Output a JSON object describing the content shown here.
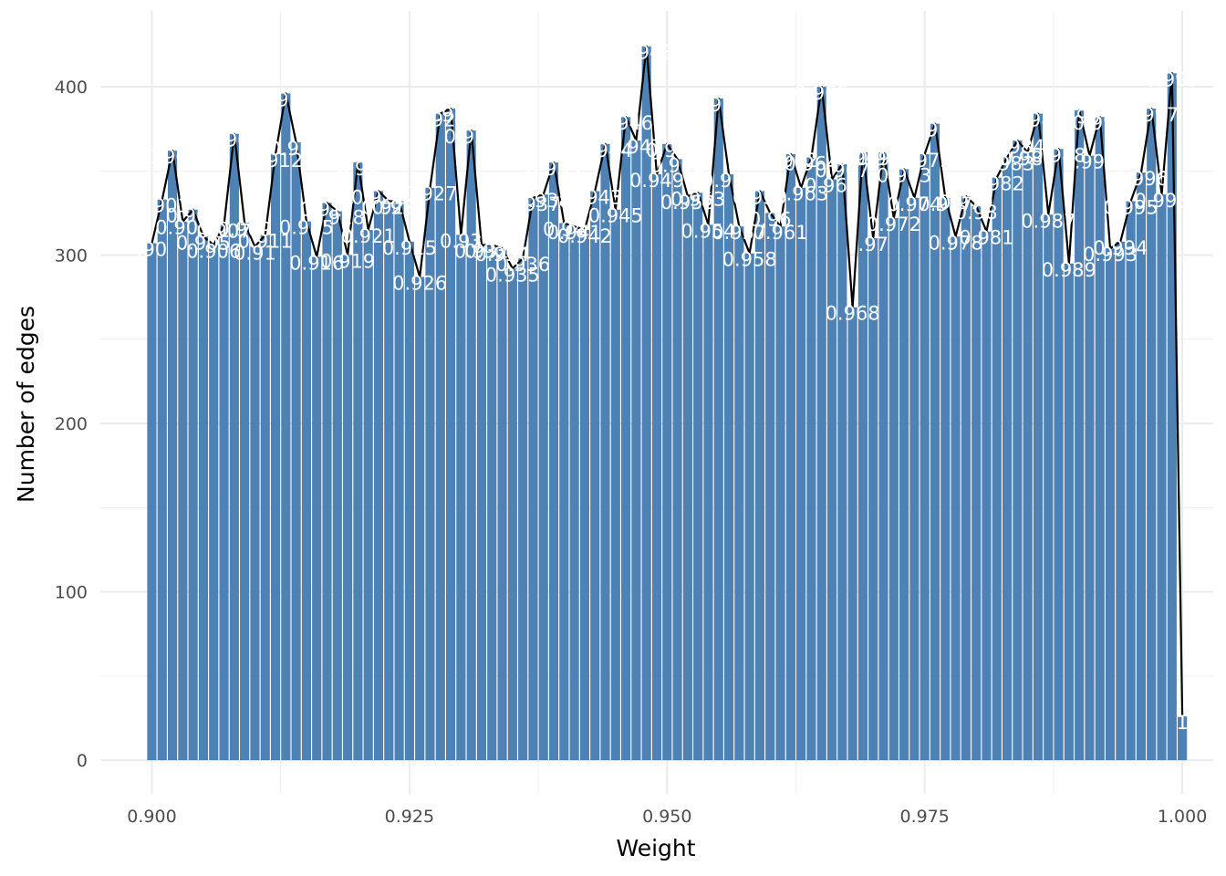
{
  "chart_data": {
    "type": "bar",
    "xlabel": "Weight",
    "ylabel": "Number of edges",
    "xlim": [
      0.895,
      1.003
    ],
    "ylim": [
      -20,
      445
    ],
    "x_ticks": [
      0.9,
      0.925,
      0.95,
      0.975,
      1.0
    ],
    "x_tick_labels": [
      "0.900",
      "0.925",
      "0.950",
      "0.975",
      "1.000"
    ],
    "y_ticks": [
      0,
      100,
      200,
      300,
      400
    ],
    "y_tick_labels": [
      "0",
      "100",
      "200",
      "300",
      "400"
    ],
    "grid": true,
    "bar_color": "#4e81b4",
    "line_color": "#000000",
    "label_color": "#ffffff",
    "x": [
      0.9,
      0.901,
      0.902,
      0.903,
      0.904,
      0.905,
      0.906,
      0.907,
      0.908,
      0.909,
      0.91,
      0.911,
      0.912,
      0.913,
      0.914,
      0.915,
      0.916,
      0.917,
      0.918,
      0.919,
      0.92,
      0.921,
      0.922,
      0.923,
      0.924,
      0.925,
      0.926,
      0.927,
      0.928,
      0.929,
      0.93,
      0.931,
      0.932,
      0.933,
      0.934,
      0.935,
      0.936,
      0.937,
      0.938,
      0.939,
      0.94,
      0.941,
      0.942,
      0.943,
      0.944,
      0.945,
      0.946,
      0.947,
      0.948,
      0.949,
      0.95,
      0.951,
      0.952,
      0.953,
      0.954,
      0.955,
      0.956,
      0.957,
      0.958,
      0.959,
      0.96,
      0.961,
      0.962,
      0.963,
      0.964,
      0.965,
      0.966,
      0.967,
      0.968,
      0.969,
      0.97,
      0.971,
      0.972,
      0.973,
      0.974,
      0.975,
      0.976,
      0.977,
      0.978,
      0.979,
      0.98,
      0.981,
      0.982,
      0.983,
      0.984,
      0.985,
      0.986,
      0.987,
      0.988,
      0.989,
      0.99,
      0.991,
      0.992,
      0.993,
      0.994,
      0.995,
      0.996,
      0.997,
      0.998,
      0.999,
      1.0
    ],
    "values": [
      307,
      333,
      362,
      320,
      327,
      311,
      306,
      318,
      372,
      319,
      305,
      312,
      360,
      396,
      367,
      320,
      299,
      331,
      326,
      300,
      355,
      315,
      338,
      332,
      332,
      308,
      287,
      340,
      384,
      387,
      312,
      374,
      306,
      306,
      304,
      292,
      298,
      334,
      336,
      355,
      319,
      317,
      315,
      338,
      366,
      327,
      382,
      368,
      424,
      348,
      366,
      357,
      335,
      337,
      318,
      393,
      348,
      317,
      301,
      338,
      325,
      317,
      360,
      340,
      358,
      400,
      345,
      354,
      269,
      361,
      310,
      361,
      322,
      351,
      334,
      360,
      378,
      334,
      311,
      335,
      329,
      314,
      346,
      358,
      368,
      361,
      384,
      324,
      363,
      295,
      386,
      359,
      382,
      304,
      308,
      332,
      349,
      387,
      336,
      408,
      26
    ],
    "labels": [
      ".90",
      "0.901",
      "0.902",
      "0.903",
      "0.904",
      "0.905",
      "0.906",
      "0.907",
      "0.908",
      "0.909",
      "0.91",
      "0.911",
      "0.912",
      "0.913",
      "0.914",
      "0.915",
      "0.916",
      "0.917",
      "0.918",
      "0.919",
      "0.92",
      "0.921",
      "0.922",
      "0.923",
      "0.924",
      "0.925",
      "0.926",
      "0.927",
      "0.928",
      "0.929",
      "0.93",
      "0.931",
      "0.932",
      "0.933",
      "0.934",
      "0.935",
      "0.936",
      "0.937",
      "0.938",
      "0.939",
      "0.94",
      "0.941",
      "0.942",
      "0.943",
      "0.944",
      "0.945",
      "0.946",
      "0.947",
      "0.948",
      "0.949",
      "0.95",
      "0.951",
      "0.952",
      "0.953",
      "0.954",
      "0.955",
      "0.956",
      "0.957",
      "0.958",
      "0.959",
      "0.96",
      "0.961",
      "0.962",
      "0.963",
      "0.964",
      "0.965",
      "0.966",
      "0.967",
      "0.968",
      "0.969",
      ".97",
      "0.971",
      "0.972",
      "0.973",
      "0.974",
      "0.975",
      "0.976",
      "0.977",
      "0.978",
      "0.979",
      "0.98",
      "0.981",
      "0.982",
      "0.983",
      "0.984",
      "0.985",
      "0.986",
      "0.987",
      "0.988",
      "0.989",
      "0.99",
      "0.991",
      "0.992",
      "0.993",
      "0.994",
      "0.995",
      "0.996",
      "0.997",
      "0.998",
      "0.999",
      "1"
    ]
  }
}
